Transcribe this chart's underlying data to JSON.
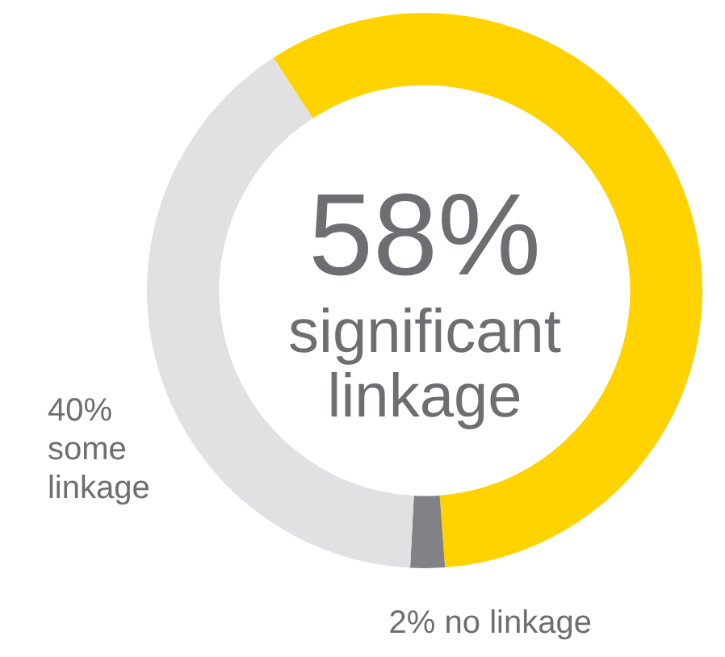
{
  "chart_data": {
    "type": "donut",
    "categories": [
      "significant linkage",
      "no linkage",
      "some linkage"
    ],
    "values": [
      58,
      2,
      40
    ],
    "colors": [
      "#ffd200",
      "#808285",
      "#e1e1e3"
    ],
    "value_labels": [
      "58%",
      "2%",
      "40%"
    ],
    "legend": false
  }
}
